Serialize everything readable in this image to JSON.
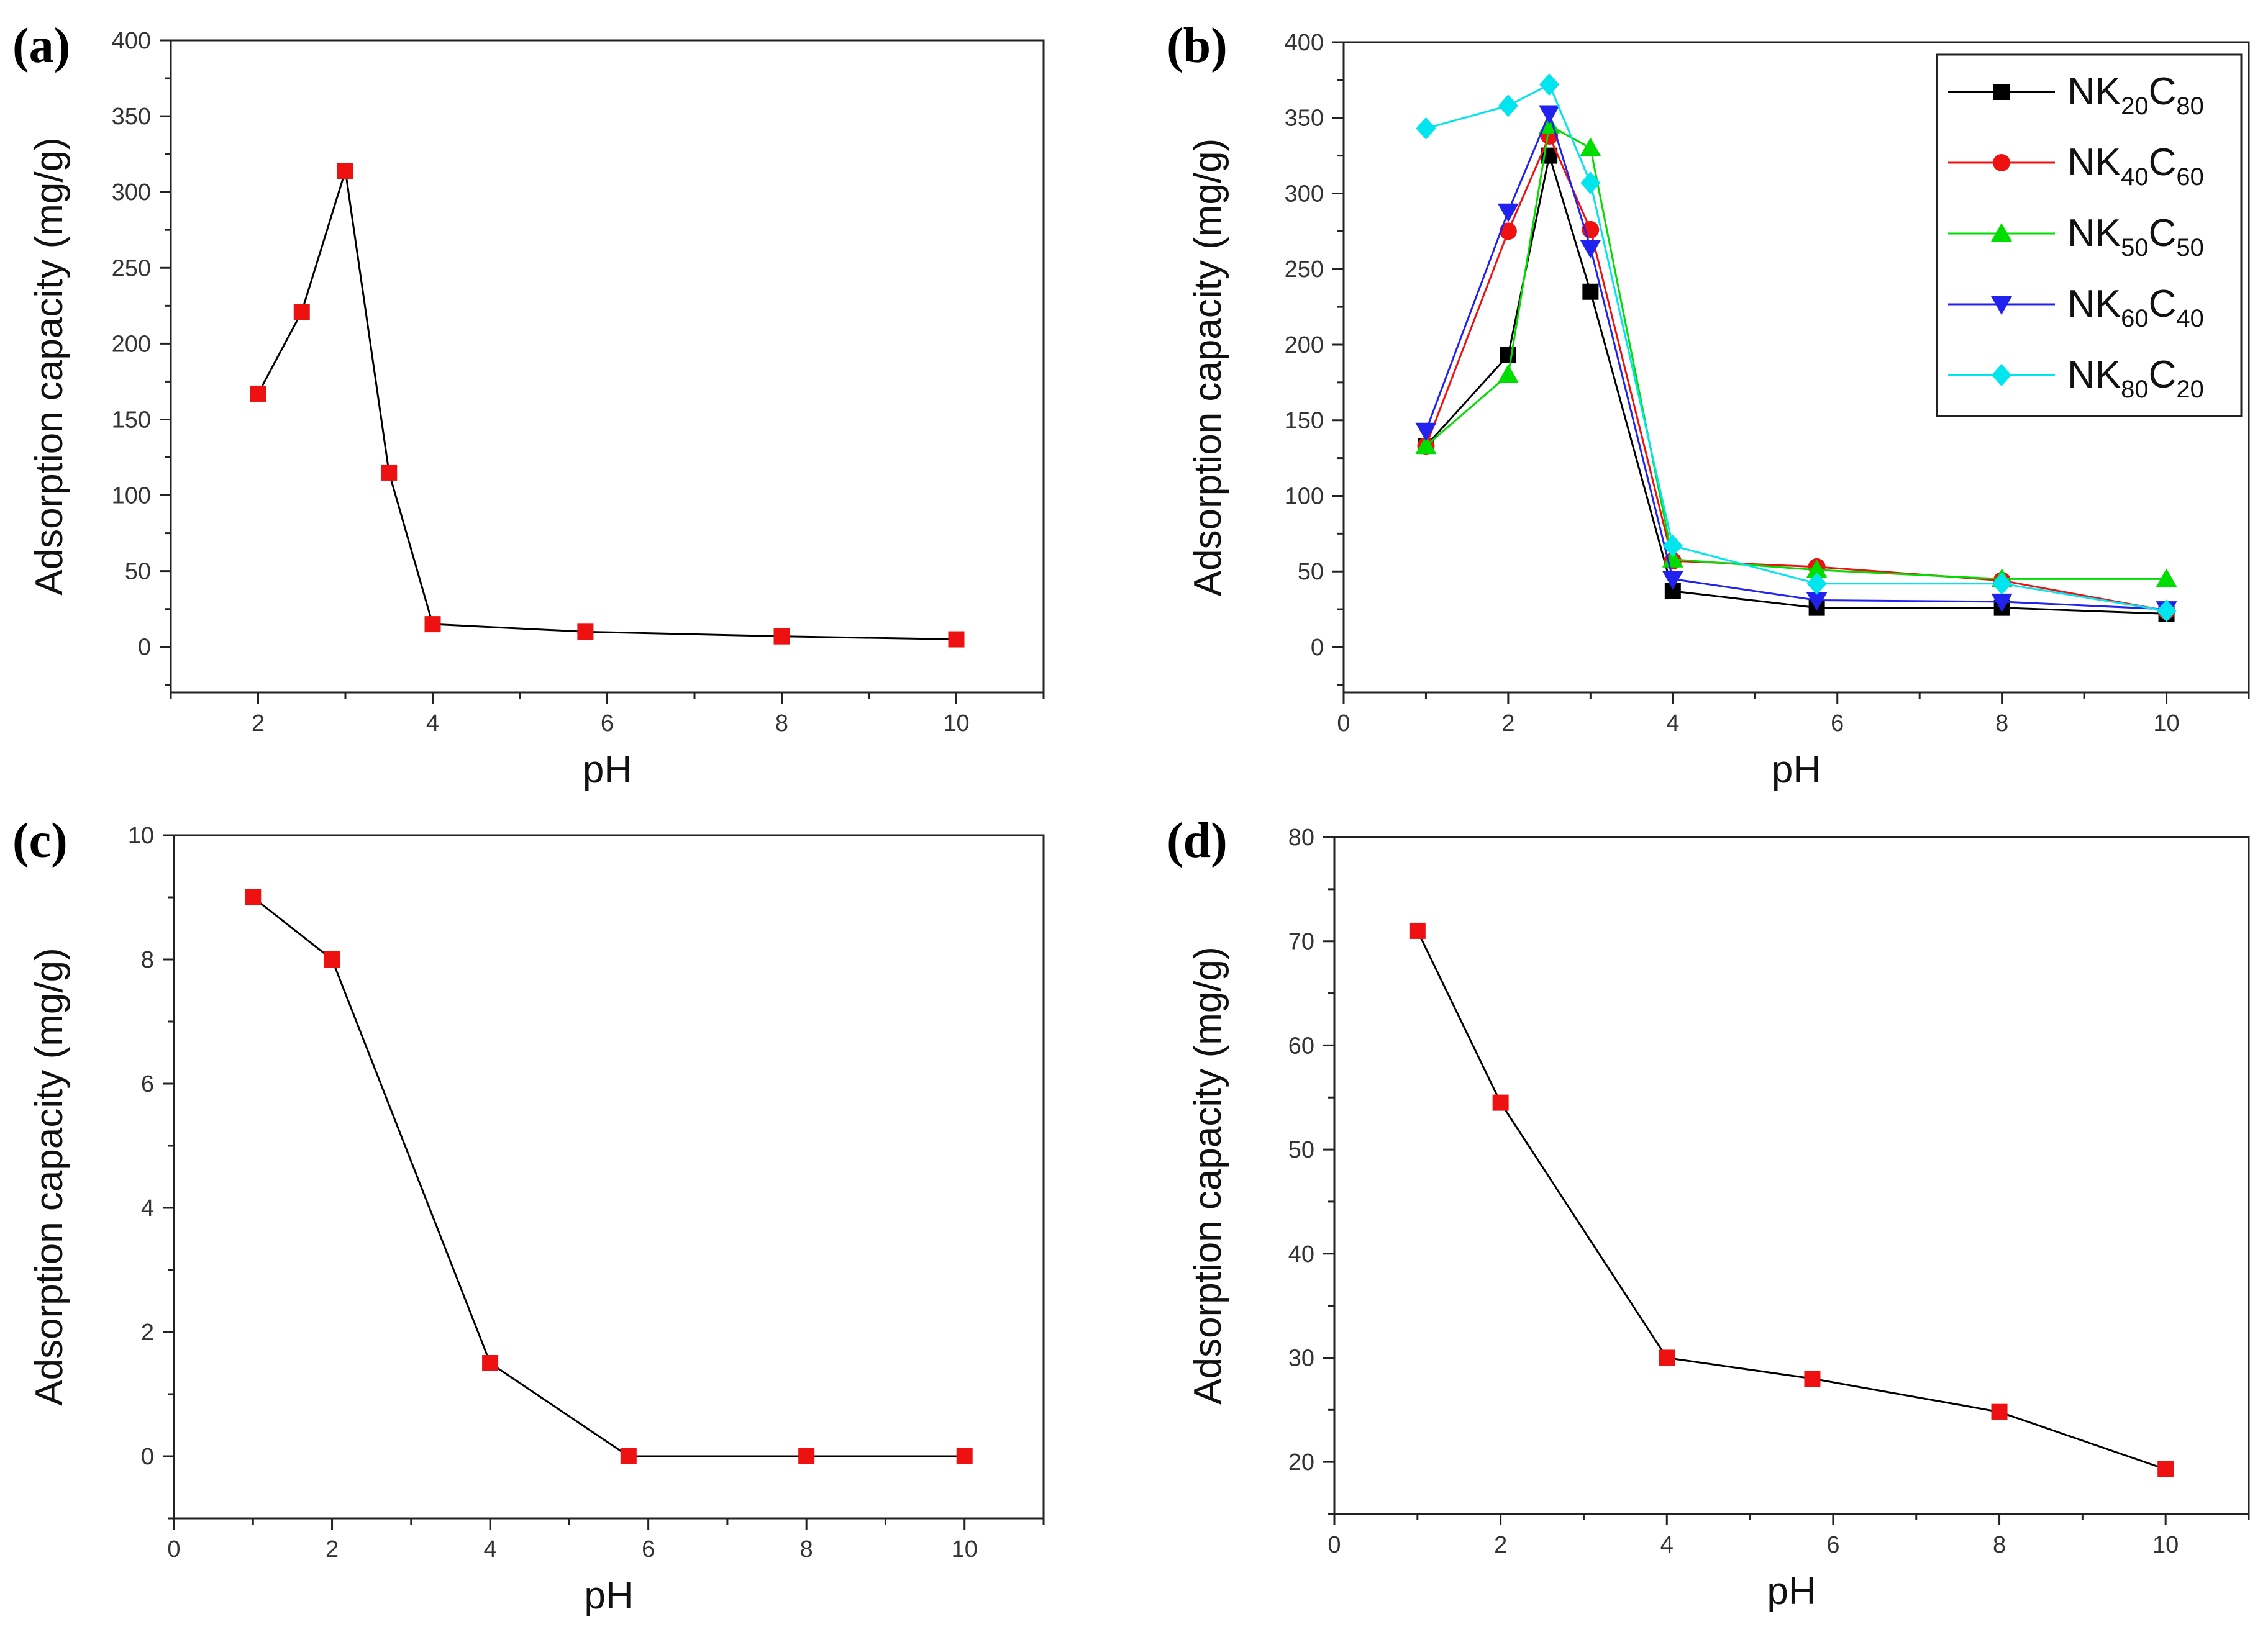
{
  "chart_data": [
    {
      "panel_label": "(a)",
      "type": "line",
      "xlabel": "pH",
      "ylabel": "Adsorption capacity (mg/g)",
      "xlim": [
        1,
        11
      ],
      "ylim": [
        -30,
        400
      ],
      "xticks": [
        "2",
        "4",
        "6",
        "8",
        "10"
      ],
      "yticks": [
        "0",
        "50",
        "100",
        "150",
        "200",
        "250",
        "300",
        "350",
        "400"
      ],
      "series": [
        {
          "name": "",
          "color": "#000000",
          "marker": "square",
          "marker_color": "#ee1111",
          "x": [
            2,
            2.5,
            3,
            3.5,
            4,
            5.75,
            8,
            10
          ],
          "y": [
            167,
            221,
            314,
            115,
            15,
            10,
            7,
            5
          ]
        }
      ]
    },
    {
      "panel_label": "(b)",
      "type": "line",
      "xlabel": "pH",
      "ylabel": "Adsorption capacity (mg/g)",
      "xlim": [
        0,
        11
      ],
      "ylim": [
        -30,
        400
      ],
      "xticks": [
        "0",
        "2",
        "4",
        "6",
        "8",
        "10"
      ],
      "yticks": [
        "0",
        "50",
        "100",
        "150",
        "200",
        "250",
        "300",
        "350",
        "400"
      ],
      "legend_position": "top-right",
      "series": [
        {
          "name": "NK20C80",
          "label_parts": [
            "NK",
            "20",
            "C",
            "80"
          ],
          "color": "#000000",
          "marker": "square",
          "marker_color": "#000000",
          "x": [
            1,
            2,
            2.5,
            3,
            4,
            5.75,
            8,
            10
          ],
          "y": [
            133,
            193,
            325,
            235,
            37,
            26,
            26,
            22
          ]
        },
        {
          "name": "NK40C60",
          "label_parts": [
            "NK",
            "40",
            "C",
            "60"
          ],
          "color": "#ee1111",
          "marker": "circle",
          "marker_color": "#ee1111",
          "x": [
            1,
            2,
            2.5,
            3,
            4,
            5.75,
            8,
            10
          ],
          "y": [
            133,
            275,
            338,
            276,
            57,
            53,
            44,
            24
          ]
        },
        {
          "name": "NK50C50",
          "label_parts": [
            "NK",
            "50",
            "C",
            "50"
          ],
          "color": "#00dd00",
          "marker": "triangle-up",
          "marker_color": "#00dd00",
          "x": [
            1,
            2,
            2.5,
            3,
            4,
            5.75,
            8,
            10
          ],
          "y": [
            133,
            180,
            345,
            330,
            58,
            51,
            45,
            45
          ]
        },
        {
          "name": "NK60C40",
          "label_parts": [
            "NK",
            "60",
            "C",
            "40"
          ],
          "color": "#2222ee",
          "marker": "triangle-down",
          "marker_color": "#2222ee",
          "x": [
            1,
            2,
            2.5,
            3,
            4,
            5.75,
            8,
            10
          ],
          "y": [
            143,
            288,
            353,
            264,
            45,
            31,
            30,
            25
          ]
        },
        {
          "name": "NK80C20",
          "label_parts": [
            "NK",
            "80",
            "C",
            "20"
          ],
          "color": "#00e5ee",
          "marker": "diamond",
          "marker_color": "#00e5ee",
          "x": [
            1,
            2,
            2.5,
            3,
            4,
            5.75,
            8,
            10
          ],
          "y": [
            343,
            358,
            372,
            307,
            67,
            42,
            42,
            24
          ]
        }
      ]
    },
    {
      "panel_label": "(c)",
      "type": "line",
      "xlabel": "pH",
      "ylabel": "Adsorption capacity (mg/g)",
      "xlim": [
        0,
        11
      ],
      "ylim": [
        -1,
        10
      ],
      "xticks": [
        "0",
        "2",
        "4",
        "6",
        "8",
        "10"
      ],
      "yticks": [
        "0",
        "2",
        "4",
        "6",
        "8",
        "10"
      ],
      "series": [
        {
          "name": "",
          "color": "#000000",
          "marker": "square",
          "marker_color": "#ee1111",
          "x": [
            1,
            2,
            4,
            5.75,
            8,
            10
          ],
          "y": [
            9,
            8,
            1.5,
            0,
            0,
            0
          ]
        }
      ]
    },
    {
      "panel_label": "(d)",
      "type": "line",
      "xlabel": "pH",
      "ylabel": "Adsorption capacity (mg/g)",
      "xlim": [
        0,
        11
      ],
      "ylim": [
        15,
        80
      ],
      "xticks": [
        "0",
        "2",
        "4",
        "6",
        "8",
        "10"
      ],
      "yticks": [
        "20",
        "30",
        "40",
        "50",
        "60",
        "70",
        "80"
      ],
      "series": [
        {
          "name": "",
          "color": "#000000",
          "marker": "square",
          "marker_color": "#ee1111",
          "x": [
            1,
            2,
            4,
            5.75,
            8,
            10
          ],
          "y": [
            71,
            54.5,
            30,
            28,
            24.8,
            19.3
          ]
        }
      ]
    }
  ]
}
